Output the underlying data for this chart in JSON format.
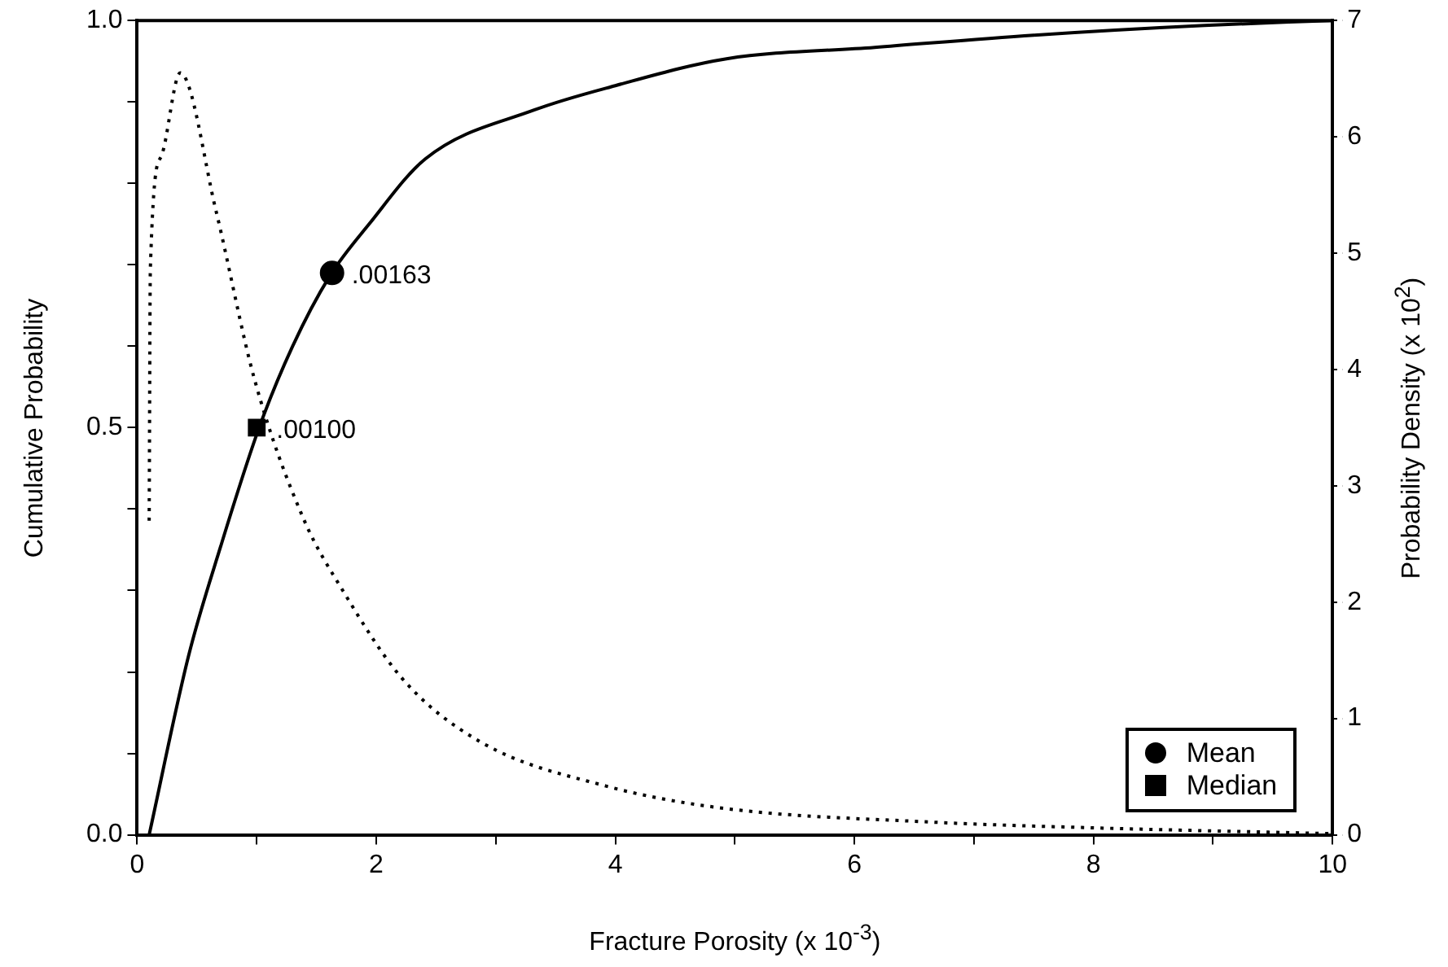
{
  "chart_data": {
    "type": "line",
    "xlabel": "Fracture Porosity (x 10$^{-3}$)",
    "ylabel": "Cumulative Probability",
    "y2label": "Probability Density (x 10$^{2}$)",
    "xlim": [
      0,
      10
    ],
    "xticks": [
      0,
      {
        "value": 1,
        "label": null
      },
      2,
      {
        "value": 3,
        "label": null
      },
      4,
      {
        "value": 5,
        "label": null
      },
      6,
      {
        "value": 7,
        "label": null
      },
      8,
      {
        "value": 9,
        "label": null
      },
      10
    ],
    "ylim": [
      0,
      1
    ],
    "yticks": [
      {
        "value": 0,
        "label": "0.0"
      },
      {
        "value": 0.1,
        "label": null
      },
      {
        "value": 0.2,
        "label": null
      },
      {
        "value": 0.3,
        "label": null
      },
      {
        "value": 0.4,
        "label": null
      },
      {
        "value": 0.5,
        "label": "0.5"
      },
      {
        "value": 0.6,
        "label": null
      },
      {
        "value": 0.7,
        "label": null
      },
      {
        "value": 0.8,
        "label": null
      },
      {
        "value": 0.9,
        "label": null
      },
      {
        "value": 1,
        "label": "1.0"
      }
    ],
    "y2lim": [
      0,
      7
    ],
    "y2ticks": [
      0,
      1,
      2,
      3,
      4,
      5,
      6,
      7
    ],
    "grid": false,
    "legend": "bottom right",
    "marker": "none",
    "series": [
      {
        "type": "line",
        "color": "#000000",
        "line_style": "solid",
        "x": [
          0.1,
          0.43,
          0.7,
          1.02,
          1.3,
          1.61,
          1.94,
          2.41,
          3.32,
          4.0,
          4.93,
          6.17,
          7.5,
          8.93,
          10
        ],
        "values": [
          0,
          0.22,
          0.355,
          0.5,
          0.6,
          0.686,
          0.75,
          0.83,
          0.89,
          0.92,
          0.953,
          0.967,
          0.982,
          0.994,
          1
        ]
      },
      {
        "type": "line",
        "color": "#000000",
        "line_style": "dotted",
        "axis": "y2",
        "x": [
          0.1,
          0.11,
          0.2,
          0.36,
          0.66,
          0.98,
          1.39,
          1.72,
          2.22,
          2.87,
          3.92,
          4.89,
          6.63,
          8,
          10
        ],
        "values": [
          2.7,
          4.87,
          5.83,
          6.55,
          5.36,
          3.92,
          2.72,
          2.1,
          1.34,
          0.8,
          0.42,
          0.23,
          0.11,
          0.06,
          0.01
        ]
      },
      {
        "type": "scatter",
        "name": "Mean",
        "color": "#000000",
        "marker": "circle",
        "x": [
          1.63
        ],
        "values": [
          0.69
        ]
      },
      {
        "type": "scatter",
        "name": "Median",
        "color": "#000000",
        "marker": "square",
        "x": [
          1.0
        ],
        "values": [
          0.5
        ]
      }
    ],
    "annotations": [
      {
        "text": ".00163",
        "x": 1.63,
        "y": 0.69
      },
      {
        "text": ".00100",
        "x": 1.0,
        "y": 0.5
      }
    ]
  }
}
